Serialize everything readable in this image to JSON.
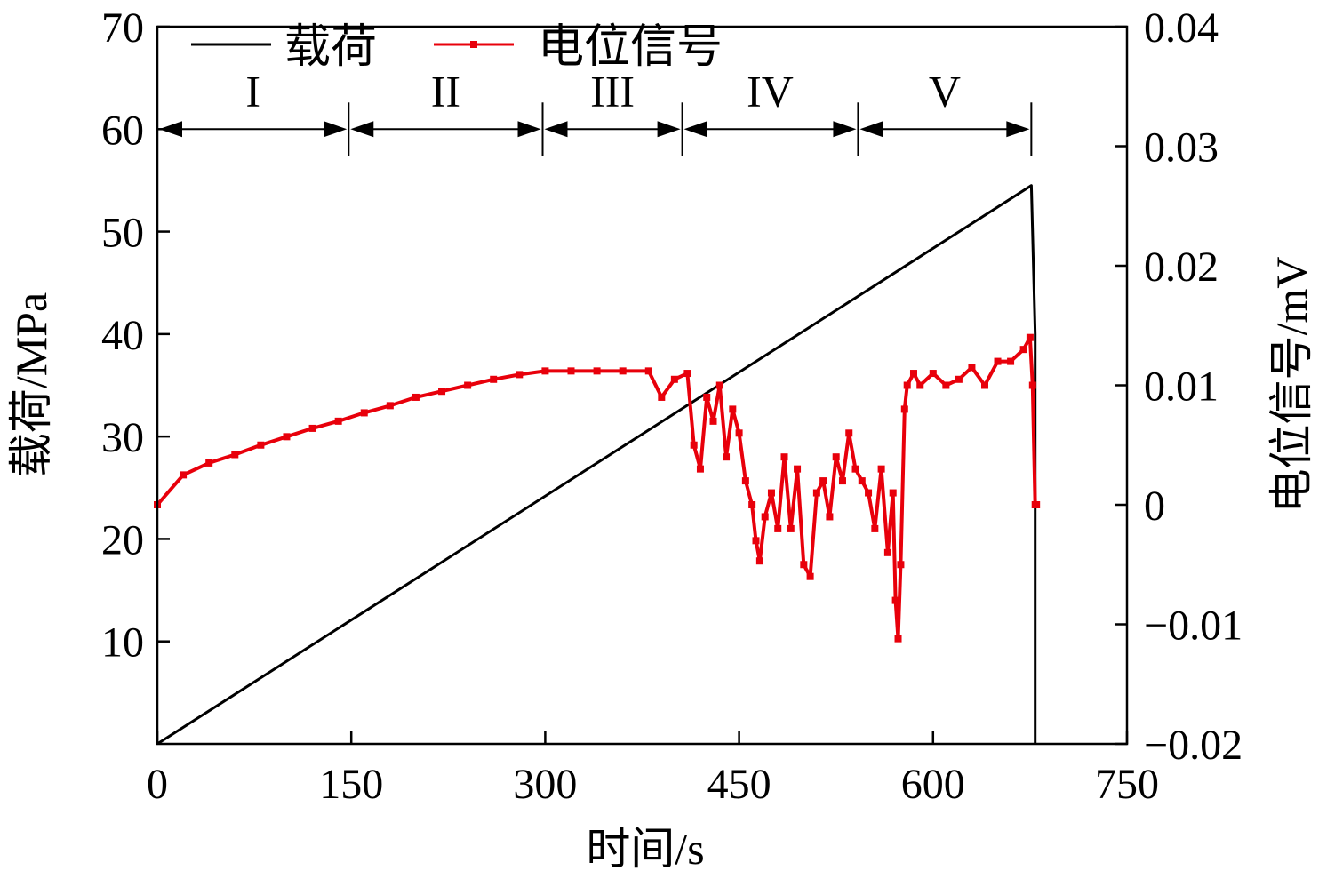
{
  "chart_data": {
    "type": "line",
    "title": "",
    "xlabel": "时间/s",
    "ylabel": "载荷/MPa",
    "y2label": "电位信号/mV",
    "xlim": [
      0,
      750
    ],
    "ylim": [
      0,
      70
    ],
    "y2lim": [
      -0.02,
      0.04
    ],
    "x_ticks": [
      "0",
      "150",
      "300",
      "450",
      "600",
      "750"
    ],
    "y_ticks": [
      "10",
      "20",
      "30",
      "40",
      "50",
      "60",
      "70"
    ],
    "y2_ticks": [
      "−0.02",
      "−0.01",
      "0",
      "0.01",
      "0.02",
      "0.03",
      "0.04"
    ],
    "legend": [
      "载荷",
      "电位信号"
    ],
    "legend_position": "top-left",
    "colors": {
      "load": "#000000",
      "signal": "#e8000b"
    },
    "stages": [
      {
        "label": "I",
        "start": 0,
        "end": 148
      },
      {
        "label": "II",
        "start": 148,
        "end": 298
      },
      {
        "label": "III",
        "start": 298,
        "end": 406
      },
      {
        "label": "IV",
        "start": 406,
        "end": 542
      },
      {
        "label": "V",
        "start": 542,
        "end": 676
      }
    ],
    "stage_y": 60,
    "series": [
      {
        "name": "载荷",
        "axis": "left",
        "x": [
          0,
          676,
          679,
          679
        ],
        "y": [
          0,
          54.5,
          40,
          0
        ]
      },
      {
        "name": "电位信号",
        "axis": "right",
        "x": [
          0,
          20,
          40,
          60,
          80,
          100,
          120,
          140,
          160,
          180,
          200,
          220,
          240,
          260,
          280,
          300,
          320,
          340,
          360,
          380,
          390,
          400,
          410,
          415,
          420,
          425,
          430,
          435,
          440,
          445,
          450,
          455,
          460,
          463,
          466,
          470,
          475,
          480,
          485,
          490,
          495,
          500,
          505,
          510,
          515,
          520,
          525,
          530,
          535,
          540,
          545,
          550,
          555,
          560,
          565,
          569,
          571,
          573,
          575,
          578,
          580,
          585,
          590,
          600,
          610,
          620,
          630,
          640,
          650,
          660,
          670,
          675,
          677,
          679,
          680
        ],
        "y": [
          0.0,
          0.0025,
          0.0035,
          0.0042,
          0.005,
          0.0057,
          0.0064,
          0.007,
          0.0077,
          0.0083,
          0.009,
          0.0095,
          0.01,
          0.0105,
          0.0109,
          0.0112,
          0.0112,
          0.0112,
          0.0112,
          0.0112,
          0.009,
          0.0105,
          0.011,
          0.005,
          0.003,
          0.009,
          0.007,
          0.01,
          0.004,
          0.008,
          0.006,
          0.002,
          0.0,
          -0.003,
          -0.0047,
          -0.001,
          0.001,
          -0.002,
          0.004,
          -0.002,
          0.003,
          -0.005,
          -0.006,
          0.001,
          0.002,
          -0.001,
          0.004,
          0.002,
          0.006,
          0.003,
          0.002,
          0.001,
          -0.002,
          0.003,
          -0.004,
          0.001,
          -0.008,
          -0.0112,
          -0.005,
          0.008,
          0.01,
          0.011,
          0.01,
          0.011,
          0.01,
          0.0105,
          0.0115,
          0.01,
          0.012,
          0.012,
          0.013,
          0.014,
          0.01,
          0.0,
          0.0
        ]
      }
    ]
  }
}
